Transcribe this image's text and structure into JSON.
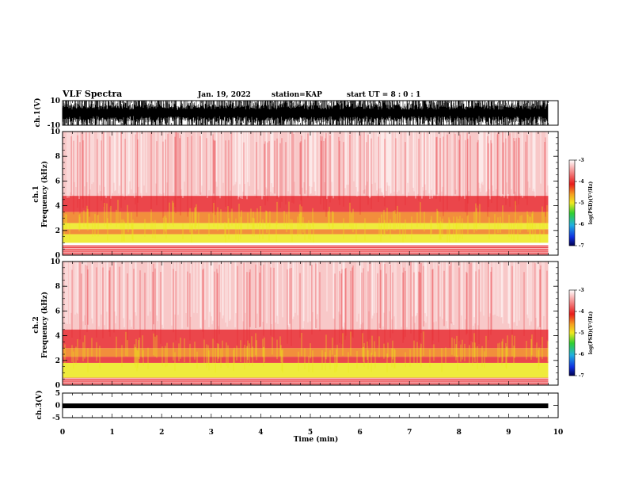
{
  "header": {
    "title": "VLF Spectra",
    "date": "Jan. 19, 2022",
    "station": "station=KAP",
    "start": "start  UT =  8 : 0  : 1"
  },
  "chart_data": [
    {
      "type": "line",
      "name": "ch1-waveform",
      "ylabel": "ch.1(V)",
      "ylim": [
        -10,
        10
      ],
      "y_ticks": [
        "10",
        "-10"
      ],
      "x_range_min": [
        0,
        9.8
      ],
      "description_values": {
        "min": -10,
        "max": 10
      }
    },
    {
      "type": "heatmap",
      "name": "ch1-spectrogram",
      "ylabel": "ch.1\nFrequency  (kHz)",
      "ylabel_lines": [
        "ch.1",
        "Frequency  (kHz)"
      ],
      "ylim": [
        0,
        10
      ],
      "y_ticks": [
        "0",
        "2",
        "4",
        "6",
        "8",
        "10"
      ],
      "xlim": [
        0,
        10
      ],
      "colorbar": {
        "label": "log(PSD)(V²/Hz)",
        "range": [
          -7,
          -3
        ],
        "ticks": [
          "-3",
          "-4",
          "-5",
          "-6",
          "-7"
        ]
      },
      "bands_khz": [
        {
          "from": 0.0,
          "to": 0.8,
          "level": "red-lines"
        },
        {
          "from": 1.0,
          "to": 1.7,
          "level": "yellow"
        },
        {
          "from": 1.7,
          "to": 2.1,
          "level": "orange"
        },
        {
          "from": 2.1,
          "to": 2.6,
          "level": "yellow"
        },
        {
          "from": 2.6,
          "to": 3.5,
          "level": "orange"
        },
        {
          "from": 3.5,
          "to": 4.8,
          "level": "red"
        },
        {
          "from": 4.8,
          "to": 10.0,
          "level": "light-red"
        }
      ]
    },
    {
      "type": "heatmap",
      "name": "ch2-spectrogram",
      "ylabel_lines": [
        "ch.2",
        "Frequency  (kHz)"
      ],
      "ylim": [
        0,
        10
      ],
      "y_ticks": [
        "0",
        "2",
        "4",
        "6",
        "8",
        "10"
      ],
      "xlim": [
        0,
        10
      ],
      "colorbar": {
        "label": "log(PSD)(V²/Hz)",
        "range": [
          -7,
          -3
        ],
        "ticks": [
          "-3",
          "-4",
          "-5",
          "-6",
          "-7"
        ]
      },
      "bands_khz": [
        {
          "from": 0.0,
          "to": 0.6,
          "level": "red-lines"
        },
        {
          "from": 0.6,
          "to": 1.8,
          "level": "yellow-green"
        },
        {
          "from": 1.8,
          "to": 2.3,
          "level": "red"
        },
        {
          "from": 2.3,
          "to": 3.0,
          "level": "orange"
        },
        {
          "from": 3.0,
          "to": 4.5,
          "level": "red"
        },
        {
          "from": 4.5,
          "to": 10.0,
          "level": "light-red"
        }
      ]
    },
    {
      "type": "line",
      "name": "ch3-waveform",
      "ylabel": "ch.3(V)",
      "ylim": [
        -5,
        5
      ],
      "y_ticks": [
        "5",
        "0",
        "-5"
      ],
      "level": -0.2,
      "x_range_min": [
        0,
        9.8
      ]
    }
  ],
  "xaxis": {
    "label": "Time  (min)",
    "ticks": [
      "0",
      "1",
      "2",
      "3",
      "4",
      "5",
      "6",
      "7",
      "8",
      "9",
      "10"
    ],
    "xlim": [
      0,
      10
    ]
  },
  "colors": {
    "light_red": "#f39a9a",
    "red": "#e8262b",
    "orange": "#f07a1a",
    "yellow": "#ece81a",
    "green": "#3fcf2a",
    "line": "#000000"
  }
}
